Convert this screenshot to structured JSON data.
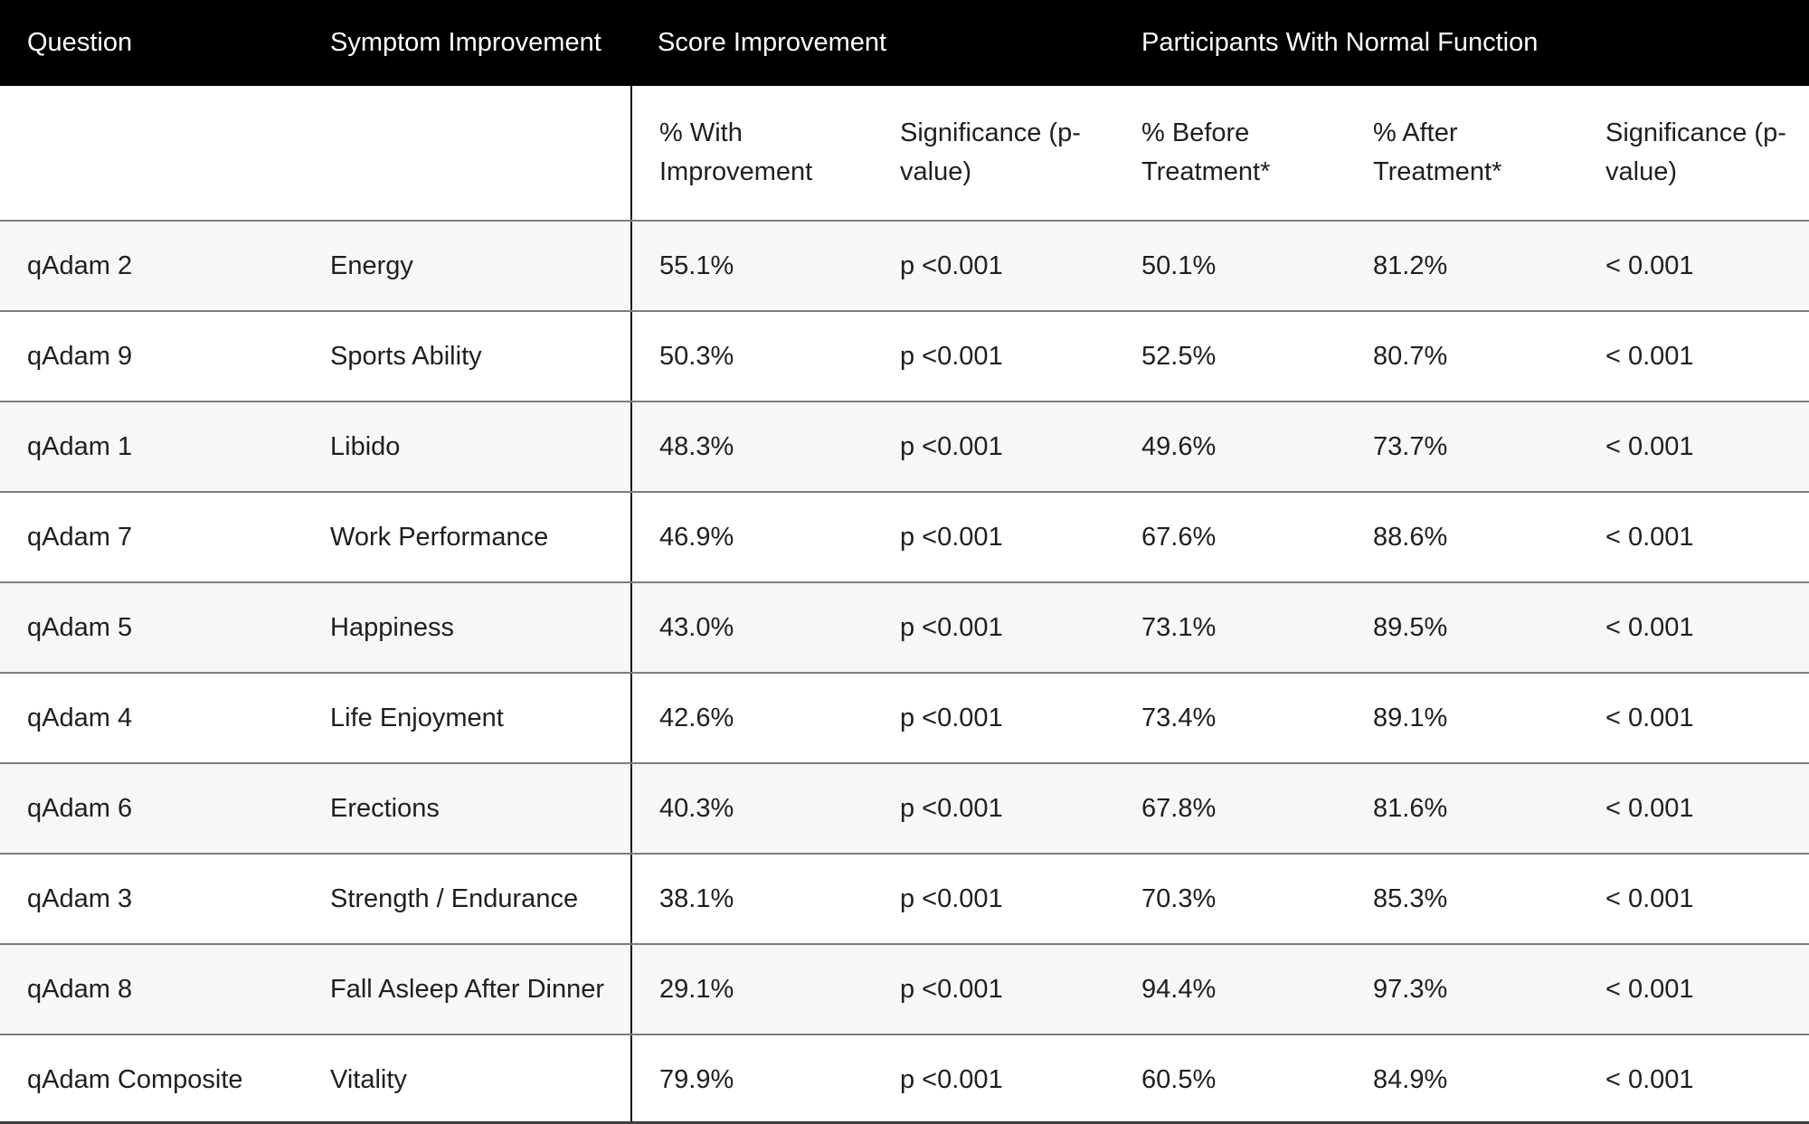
{
  "colors": {
    "header_bg": "#000000",
    "header_text": "#ffffff",
    "row_alt_bg": "#f7f7f7",
    "row_separator": "#7d7d7d",
    "column_divider": "#161616",
    "body_text": "#1f1f1f"
  },
  "chart_data": {
    "type": "table",
    "column_groups": [
      {
        "label": "Question",
        "span": 1
      },
      {
        "label": "Symptom Improvement",
        "span": 1
      },
      {
        "label": "Score Improvement",
        "span": 2
      },
      {
        "label": "Participants With Normal Function",
        "span": 3
      }
    ],
    "columns": [
      "Question",
      "Symptom Improvement",
      "% With Improvement",
      "Significance (p-value)",
      "% Before Treatment*",
      "% After Treatment*",
      "Significance (p-value)"
    ],
    "rows": [
      [
        "qAdam 2",
        "Energy",
        "55.1%",
        "p <0.001",
        "50.1%",
        "81.2%",
        "< 0.001"
      ],
      [
        "qAdam 9",
        "Sports Ability",
        "50.3%",
        "p <0.001",
        "52.5%",
        "80.7%",
        "< 0.001"
      ],
      [
        "qAdam 1",
        "Libido",
        "48.3%",
        "p <0.001",
        "49.6%",
        "73.7%",
        "< 0.001"
      ],
      [
        "qAdam 7",
        "Work Performance",
        "46.9%",
        "p <0.001",
        "67.6%",
        "88.6%",
        "< 0.001"
      ],
      [
        "qAdam 5",
        "Happiness",
        "43.0%",
        "p <0.001",
        "73.1%",
        "89.5%",
        "< 0.001"
      ],
      [
        "qAdam 4",
        "Life Enjoyment",
        "42.6%",
        "p <0.001",
        "73.4%",
        "89.1%",
        "< 0.001"
      ],
      [
        "qAdam 6",
        "Erections",
        "40.3%",
        "p <0.001",
        "67.8%",
        "81.6%",
        "< 0.001"
      ],
      [
        "qAdam 3",
        "Strength / Endurance",
        "38.1%",
        "p <0.001",
        "70.3%",
        "85.3%",
        "< 0.001"
      ],
      [
        "qAdam 8",
        "Fall Asleep After Dinner",
        "29.1%",
        "p <0.001",
        "94.4%",
        "97.3%",
        "< 0.001"
      ],
      [
        "qAdam Composite",
        "Vitality",
        "79.9%",
        "p <0.001",
        "60.5%",
        "84.9%",
        "< 0.001"
      ]
    ]
  }
}
